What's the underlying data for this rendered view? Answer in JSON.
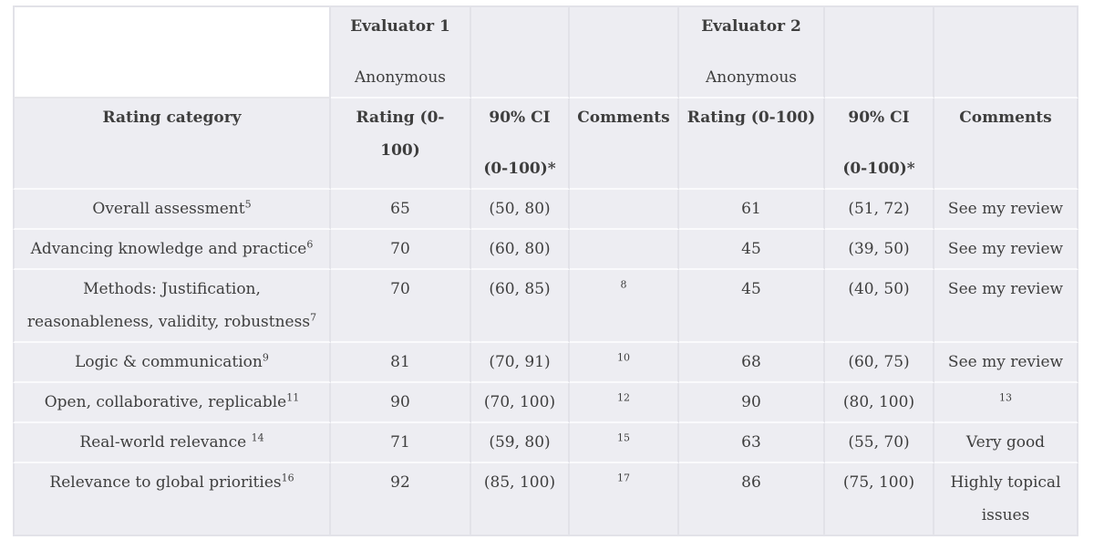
{
  "colors": {
    "cell_background": "#EDEDF2",
    "blank_cell_background": "#FFFFFF",
    "column_border": "#E2E2E8",
    "row_border": "#FAFAFC",
    "text": "#3E3E3E"
  },
  "table": {
    "evaluator1": {
      "title": "Evaluator 1",
      "subtitle": "Anonymous"
    },
    "evaluator2": {
      "title": "Evaluator 2",
      "subtitle": "Anonymous"
    },
    "columns": {
      "category": "Rating category",
      "rating": "Rating (0-100)",
      "ci_line1": "90% CI",
      "ci_line2": "(0-100)*",
      "comments": "Comments"
    },
    "rows": [
      {
        "category": "Overall assessment",
        "category_sup": "5",
        "e1_rating": "65",
        "e1_ci": "(50, 80)",
        "e1_comment": "",
        "e1_comment_sup": "",
        "e2_rating": "61",
        "e2_ci": "(51, 72)",
        "e2_comment": "See my review",
        "e2_comment_sup": ""
      },
      {
        "category": "Advancing knowledge and practice",
        "category_sup": "6",
        "e1_rating": "70",
        "e1_ci": "(60, 80)",
        "e1_comment": "",
        "e1_comment_sup": "",
        "e2_rating": "45",
        "e2_ci": "(39, 50)",
        "e2_comment": "See my review",
        "e2_comment_sup": ""
      },
      {
        "category": "Methods: Justification, reasonableness, validity, robustness",
        "category_sup": "7",
        "e1_rating": "70",
        "e1_ci": "(60, 85)",
        "e1_comment": "",
        "e1_comment_sup": "8",
        "e2_rating": "45",
        "e2_ci": "(40, 50)",
        "e2_comment": "See my review",
        "e2_comment_sup": ""
      },
      {
        "category": "Logic & communication",
        "category_sup": "9",
        "e1_rating": "81",
        "e1_ci": "(70, 91)",
        "e1_comment": "",
        "e1_comment_sup": "10",
        "e2_rating": "68",
        "e2_ci": "(60, 75)",
        "e2_comment": "See my review",
        "e2_comment_sup": ""
      },
      {
        "category": "Open, collaborative, replicable",
        "category_sup": "11",
        "e1_rating": "90",
        "e1_ci": "(70, 100)",
        "e1_comment": "",
        "e1_comment_sup": "12",
        "e2_rating": "90",
        "e2_ci": "(80, 100)",
        "e2_comment": "",
        "e2_comment_sup": "13"
      },
      {
        "category": "Real-world relevance ",
        "category_sup": "14",
        "e1_rating": "71",
        "e1_ci": "(59, 80)",
        "e1_comment": "",
        "e1_comment_sup": "15",
        "e2_rating": "63",
        "e2_ci": "(55, 70)",
        "e2_comment": "Very good",
        "e2_comment_sup": ""
      },
      {
        "category": "Relevance to global priorities",
        "category_sup": "16",
        "e1_rating": "92",
        "e1_ci": "(85, 100)",
        "e1_comment": "",
        "e1_comment_sup": "17",
        "e2_rating": "86",
        "e2_ci": "(75, 100)",
        "e2_comment": "Highly topical issues",
        "e2_comment_sup": ""
      }
    ]
  }
}
